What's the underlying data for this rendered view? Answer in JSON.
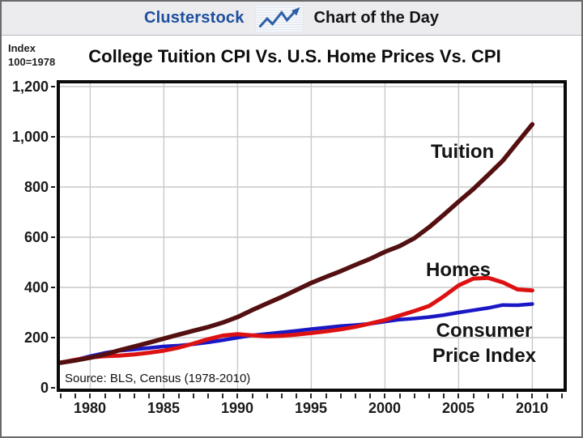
{
  "header": {
    "brand": "Clusterstock",
    "title": "Chart of the Day",
    "brand_color": "#1d4f9e",
    "icon": "line-chart-arrow-icon"
  },
  "chart": {
    "index_note_line1": "Index",
    "index_note_line2": "100=1978",
    "title": "College Tuition CPI Vs. U.S. Home Prices Vs. CPI",
    "source": "Source: BLS, Census (1978-2010)"
  },
  "chart_data": {
    "type": "line",
    "title": "College Tuition CPI Vs. U.S. Home Prices Vs. CPI",
    "x_label_note": "Index 100=1978",
    "x": [
      1978,
      1979,
      1980,
      1981,
      1982,
      1983,
      1984,
      1985,
      1986,
      1987,
      1988,
      1989,
      1990,
      1991,
      1992,
      1993,
      1994,
      1995,
      1996,
      1997,
      1998,
      1999,
      2000,
      2001,
      2002,
      2003,
      2004,
      2005,
      2006,
      2007,
      2008,
      2009,
      2010
    ],
    "series": [
      {
        "name": "Tuition",
        "color": "#541010",
        "values": [
          100,
          109,
          120,
          133,
          150,
          165,
          180,
          196,
          212,
          227,
          242,
          260,
          282,
          310,
          336,
          362,
          390,
          418,
          442,
          465,
          490,
          514,
          542,
          565,
          596,
          640,
          690,
          742,
          792,
          848,
          905,
          978,
          1050
        ]
      },
      {
        "name": "Homes",
        "color": "#dd1111",
        "values": [
          100,
          112,
          121,
          126,
          128,
          133,
          140,
          148,
          160,
          176,
          194,
          208,
          214,
          209,
          205,
          207,
          212,
          218,
          225,
          233,
          243,
          256,
          270,
          288,
          306,
          326,
          365,
          408,
          435,
          438,
          420,
          392,
          388
        ]
      },
      {
        "name": "Consumer Price Index",
        "color": "#1a18c4",
        "values": [
          100,
          111,
          126,
          139,
          148,
          153,
          159,
          165,
          168,
          174,
          181,
          190,
          200,
          209,
          215,
          221,
          227,
          234,
          240,
          246,
          250,
          255,
          264,
          272,
          276,
          282,
          290,
          300,
          309,
          318,
          330,
          329,
          334
        ]
      }
    ],
    "ylim": [
      0,
      1200
    ],
    "yticks": [
      0,
      200,
      400,
      600,
      800,
      1000,
      1200
    ],
    "ytick_labels": [
      "0",
      "200",
      "400",
      "600",
      "800",
      "1,000",
      "1,200"
    ],
    "xticks": [
      1980,
      1985,
      1990,
      1995,
      2000,
      2005,
      2010
    ],
    "minor_xticks_every": 1,
    "x_range_shown": [
      1978,
      2012
    ],
    "grid": true,
    "gridline_color": "#c9c9c9",
    "legend_position": "inline-annotations",
    "annotations": [
      {
        "text": "Tuition",
        "series": "Tuition"
      },
      {
        "text": "Homes",
        "series": "Homes"
      },
      {
        "text": "Consumer",
        "series": "Consumer Price Index"
      },
      {
        "text": "Price Index",
        "series": "Consumer Price Index"
      }
    ],
    "source": "Source: BLS, Census (1978-2010)"
  }
}
